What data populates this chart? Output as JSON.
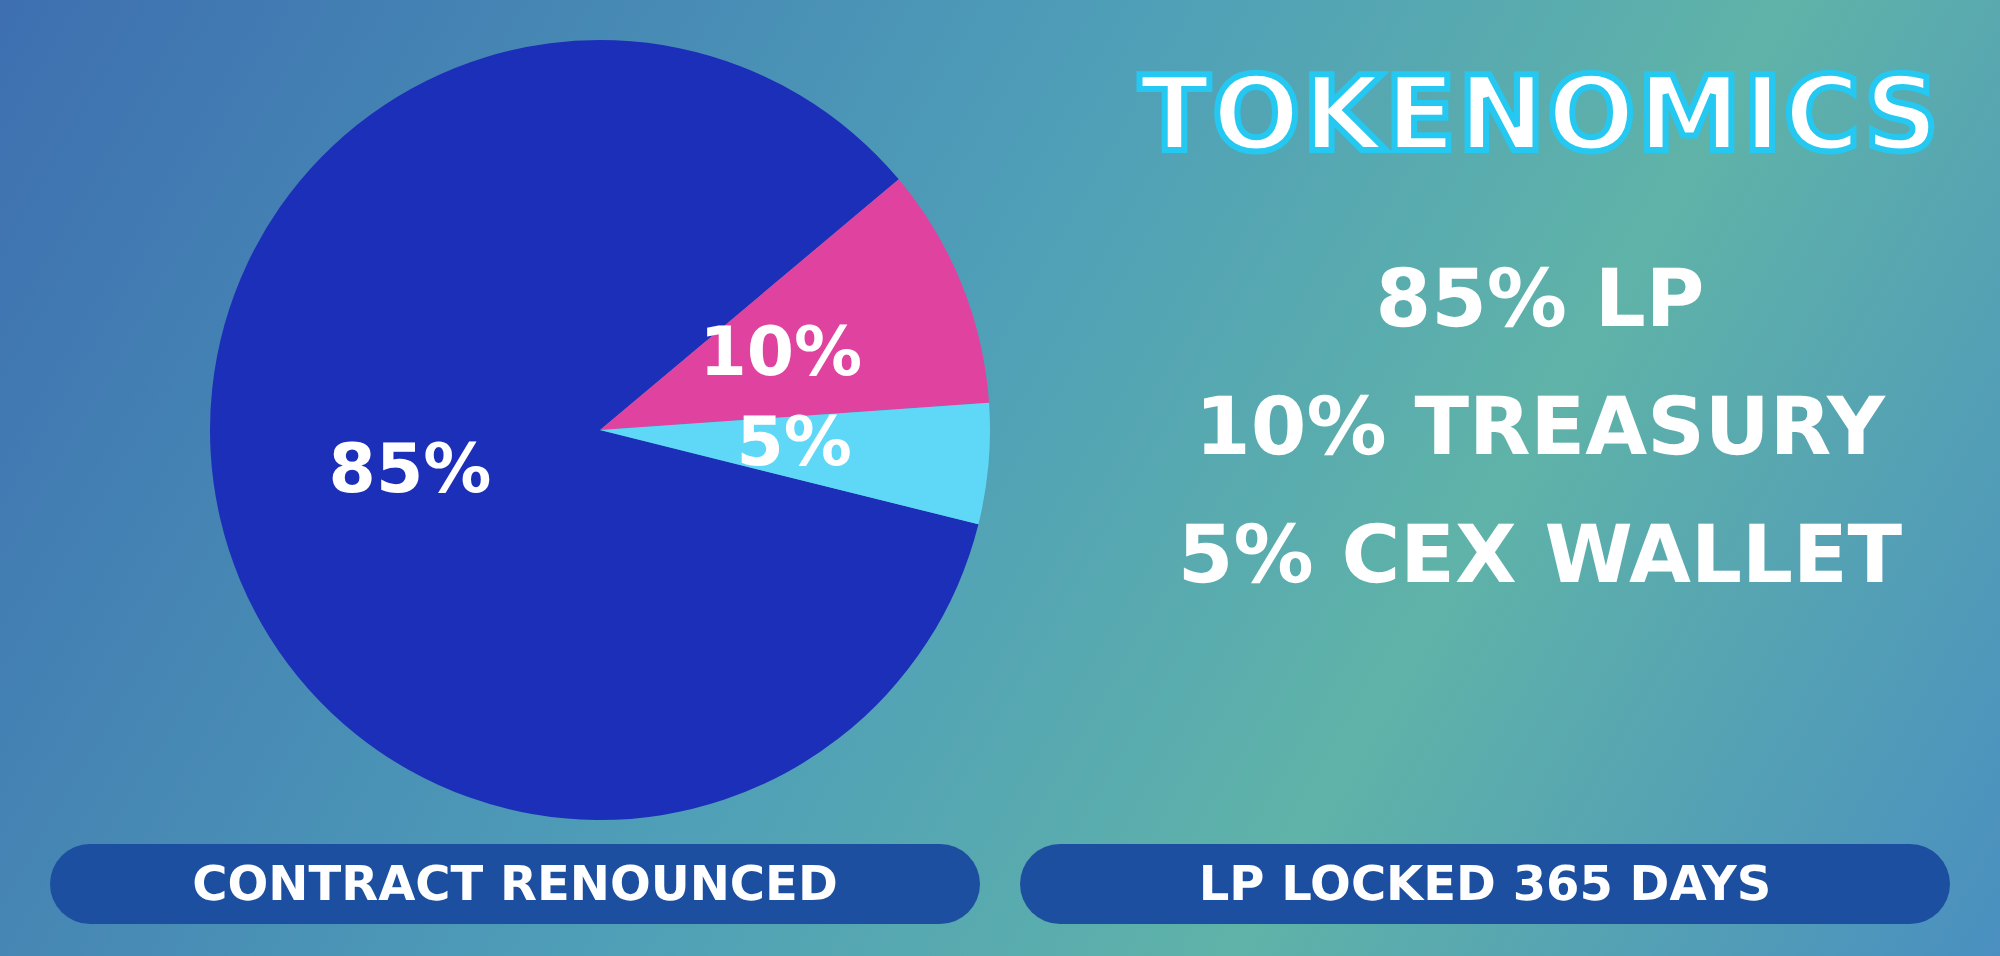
{
  "chart_data": {
    "type": "pie",
    "title": "TOKENOMICS",
    "categories": [
      null,
      null,
      null
    ],
    "values": [
      85,
      10,
      5
    ],
    "colors": [
      "#1c2fb8",
      "#e0429f",
      "#5fd8f7"
    ],
    "value_labels": [
      "85%",
      "10%",
      "5%"
    ],
    "annotations": [
      "85% LP",
      "10% TREASURY",
      "5% CEX WALLET",
      "CONTRACT RENOUNCED",
      "LP LOCKED 365 DAYS"
    ]
  }
}
